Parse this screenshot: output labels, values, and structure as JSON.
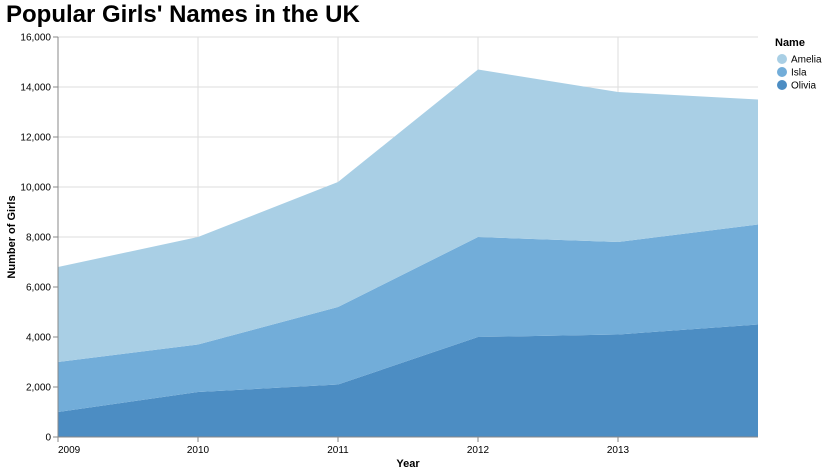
{
  "chart_data": {
    "type": "area",
    "stacked": true,
    "title": "Popular Girls' Names in the UK",
    "xlabel": "Year",
    "ylabel": "Number of Girls",
    "x": [
      2009,
      2010,
      2011,
      2012,
      2013,
      2014
    ],
    "x_tick_labels": [
      "2009",
      "2010",
      "2011",
      "2012",
      "2013"
    ],
    "ylim": [
      0,
      16000
    ],
    "y_ticks": [
      0,
      2000,
      4000,
      6000,
      8000,
      10000,
      12000,
      14000,
      16000
    ],
    "grid": true,
    "legend": {
      "title": "Name",
      "position": "right"
    },
    "series": [
      {
        "name": "Olivia",
        "color": "#4c8dc3",
        "values": [
          1000,
          1800,
          2100,
          4000,
          4100,
          4500
        ]
      },
      {
        "name": "Isla",
        "color": "#72add9",
        "values": [
          2000,
          1900,
          3100,
          4000,
          3700,
          4000
        ]
      },
      {
        "name": "Amelia",
        "color": "#a9cfe5",
        "values": [
          3800,
          4300,
          5000,
          6700,
          6000,
          5000
        ]
      }
    ],
    "legend_order": [
      "Amelia",
      "Isla",
      "Olivia"
    ]
  }
}
